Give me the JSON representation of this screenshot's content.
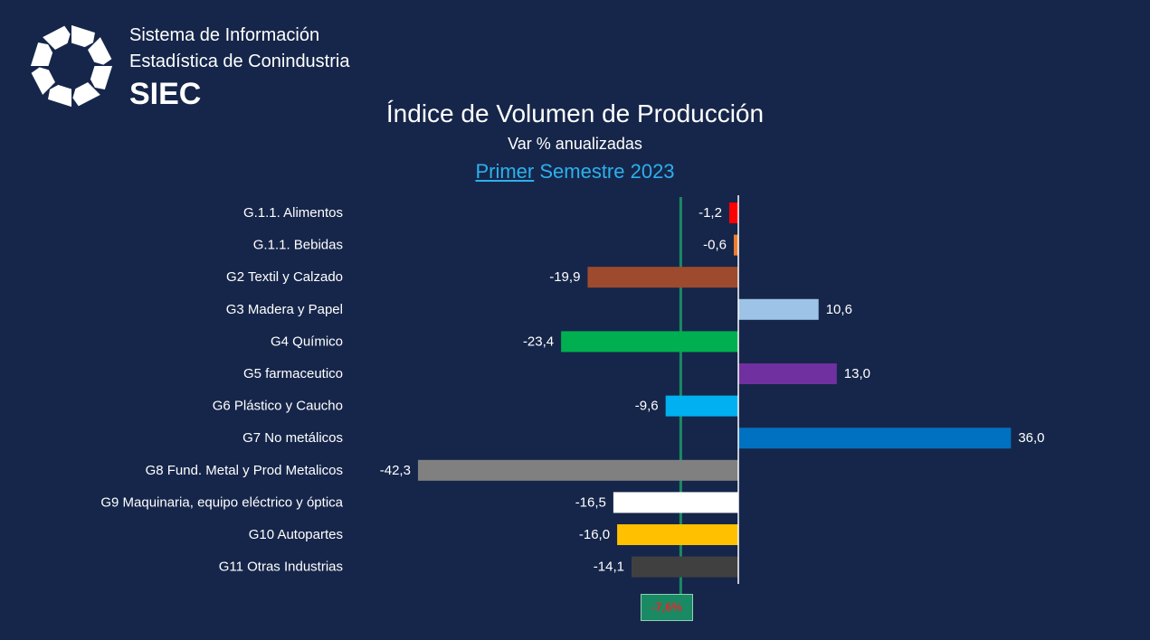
{
  "brand": {
    "line1": "Sistema de Información",
    "line2": "Estadística de Conindustria",
    "acronym": "SIEC"
  },
  "header": {
    "title": "Índice de Volumen de Producción",
    "subtitle": "Var % anualizadas",
    "period_primer": "Primer",
    "period_rest": " Semestre 2023"
  },
  "chart_data": {
    "type": "bar",
    "orientation": "horizontal",
    "categories": [
      "G.1.1. Alimentos",
      "G.1.1. Bebidas",
      "G2 Textil y Calzado",
      "G3 Madera y Papel",
      "G4 Químico",
      "G5 farmaceutico",
      "G6 Plástico y Caucho",
      "G7 No metálicos",
      "G8 Fund. Metal y Prod Metalicos",
      "G9 Maquinaria, equipo eléctrico y óptica",
      "G10 Autopartes",
      "G11 Otras Industrias"
    ],
    "values": [
      -1.2,
      -0.6,
      -19.9,
      10.6,
      -23.4,
      13.0,
      -9.6,
      36.0,
      -42.3,
      -16.5,
      -16.0,
      -14.1
    ],
    "value_labels": [
      "-1,2",
      "-0,6",
      "-19,9",
      "10,6",
      "-23,4",
      "13,0",
      "-9,6",
      "36,0",
      "-42,3",
      "-16,5",
      "-16,0",
      "-14,1"
    ],
    "colors": [
      "#ff0000",
      "#ed7d31",
      "#9e4a2e",
      "#9dc3e6",
      "#00b050",
      "#7030a0",
      "#00b0f0",
      "#0070c0",
      "#808080",
      "#ffffff",
      "#ffc000",
      "#404040"
    ],
    "reference_line": {
      "value": -7.6,
      "label": "-7,6%",
      "color": "#1a8a64"
    },
    "zero_line_color": "#ffffff",
    "label_color": "#ffffff",
    "xlim": [
      -42.3,
      36.0
    ],
    "grid": false,
    "legend": "none"
  }
}
